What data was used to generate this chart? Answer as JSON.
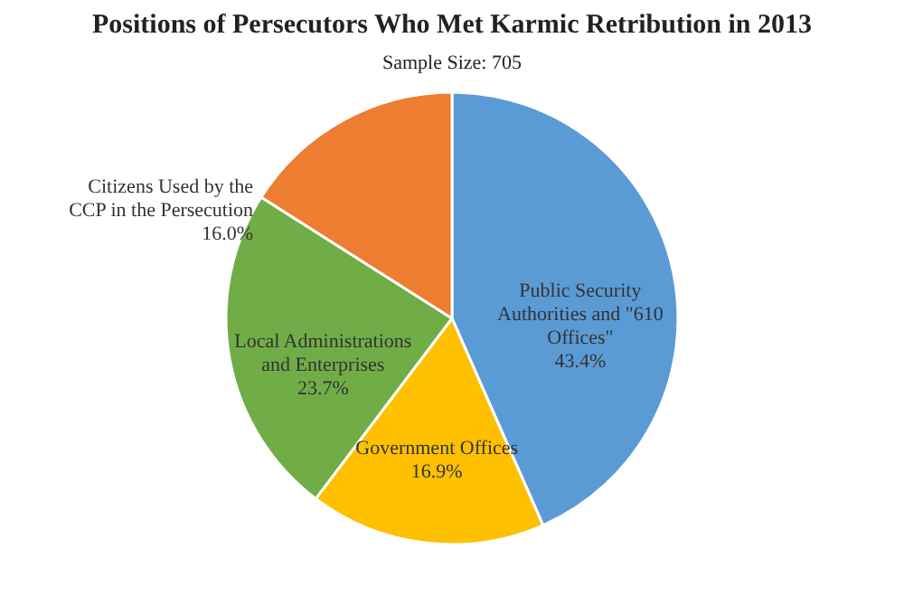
{
  "chart_data": {
    "type": "pie",
    "title": "Positions of Persecutors Who Met Karmic Retribution in 2013",
    "subtitle": "Sample Size: 705",
    "categories": [
      "Public Security Authorities and \"610 Offices\"",
      "Government Offices",
      "Local Administrations and Enterprises",
      "Citizens Used by the CCP in the Persecution"
    ],
    "values": [
      43.4,
      16.9,
      23.7,
      16.0
    ],
    "colors": [
      "#5b9bd5",
      "#ffc000",
      "#70ad47",
      "#ed7d31"
    ],
    "value_labels": [
      "43.4%",
      "16.9%",
      "23.7%",
      "16.0%"
    ],
    "legend": false
  }
}
